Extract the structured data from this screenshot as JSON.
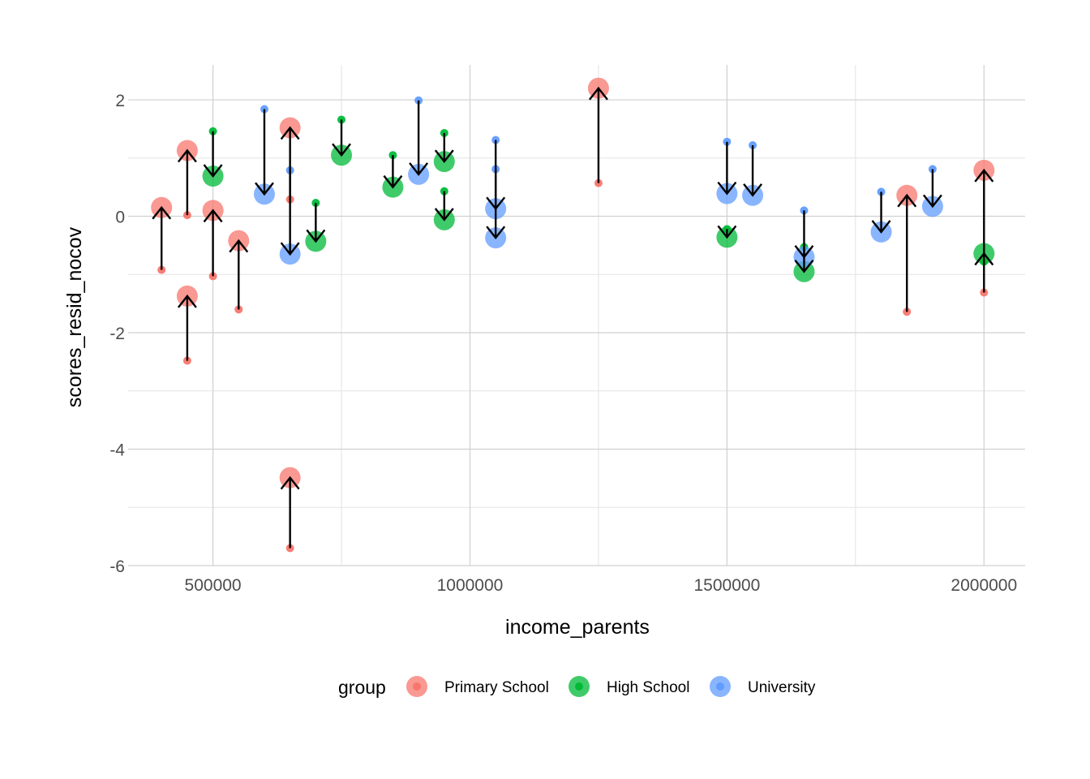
{
  "chart_data": {
    "type": "scatter",
    "xlabel": "income_parents",
    "ylabel": "scores_resid_nocov",
    "xlim": [
      335000,
      2080000
    ],
    "ylim": [
      -6.0,
      2.6
    ],
    "x_ticks": [
      500000,
      1000000,
      1500000,
      2000000
    ],
    "x_tick_labels": [
      "500000",
      "1000000",
      "1500000",
      "2000000"
    ],
    "y_ticks": [
      -6,
      -4,
      -2,
      0,
      2
    ],
    "y_tick_labels": [
      "-6",
      "-4",
      "-2",
      "0",
      "2"
    ],
    "grid": true,
    "legend": {
      "title": "group",
      "position": "bottom",
      "entries": [
        {
          "name": "Primary School",
          "color": "#F8766D"
        },
        {
          "name": "High School",
          "color": "#00BA38"
        },
        {
          "name": "University",
          "color": "#619CFF"
        }
      ]
    },
    "series": [
      {
        "name": "Primary School",
        "color": "#F8766D",
        "points": [
          {
            "x": 400000,
            "y_from": -0.92,
            "y_to": 0.15
          },
          {
            "x": 450000,
            "y_from": 0.02,
            "y_to": 1.13
          },
          {
            "x": 450000,
            "y_from": -2.48,
            "y_to": -1.37
          },
          {
            "x": 500000,
            "y_from": -1.03,
            "y_to": 0.1
          },
          {
            "x": 550000,
            "y_from": -1.6,
            "y_to": -0.42
          },
          {
            "x": 650000,
            "y_from": 0.29,
            "y_to": 1.52
          },
          {
            "x": 650000,
            "y_from": -5.7,
            "y_to": -4.49
          },
          {
            "x": 1250000,
            "y_from": 0.57,
            "y_to": 2.2
          },
          {
            "x": 1850000,
            "y_from": -1.64,
            "y_to": 0.36
          },
          {
            "x": 2000000,
            "y_from": -1.31,
            "y_to": 0.79
          }
        ]
      },
      {
        "name": "High School",
        "color": "#00BA38",
        "points": [
          {
            "x": 500000,
            "y_from": 1.46,
            "y_to": 0.69
          },
          {
            "x": 700000,
            "y_from": 0.23,
            "y_to": -0.43
          },
          {
            "x": 750000,
            "y_from": 1.66,
            "y_to": 1.05
          },
          {
            "x": 850000,
            "y_from": 1.05,
            "y_to": 0.5
          },
          {
            "x": 950000,
            "y_from": 1.43,
            "y_to": 0.94
          },
          {
            "x": 950000,
            "y_from": 0.43,
            "y_to": -0.06
          },
          {
            "x": 1500000,
            "y_from": -0.22,
            "y_to": -0.36
          },
          {
            "x": 1650000,
            "y_from": -0.53,
            "y_to": -0.95
          },
          {
            "x": 2000000,
            "y_from": -0.78,
            "y_to": -0.64
          }
        ]
      },
      {
        "name": "University",
        "color": "#619CFF",
        "points": [
          {
            "x": 600000,
            "y_from": 1.84,
            "y_to": 0.38
          },
          {
            "x": 650000,
            "y_from": 0.79,
            "y_to": -0.65
          },
          {
            "x": 900000,
            "y_from": 1.99,
            "y_to": 0.72
          },
          {
            "x": 1050000,
            "y_from": 1.31,
            "y_to": 0.13
          },
          {
            "x": 1050000,
            "y_from": 0.81,
            "y_to": -0.37
          },
          {
            "x": 1500000,
            "y_from": 1.28,
            "y_to": 0.39
          },
          {
            "x": 1550000,
            "y_from": 1.22,
            "y_to": 0.36
          },
          {
            "x": 1650000,
            "y_from": 0.1,
            "y_to": -0.7
          },
          {
            "x": 1800000,
            "y_from": 0.42,
            "y_to": -0.27
          },
          {
            "x": 1900000,
            "y_from": 0.81,
            "y_to": 0.17
          }
        ]
      }
    ]
  }
}
